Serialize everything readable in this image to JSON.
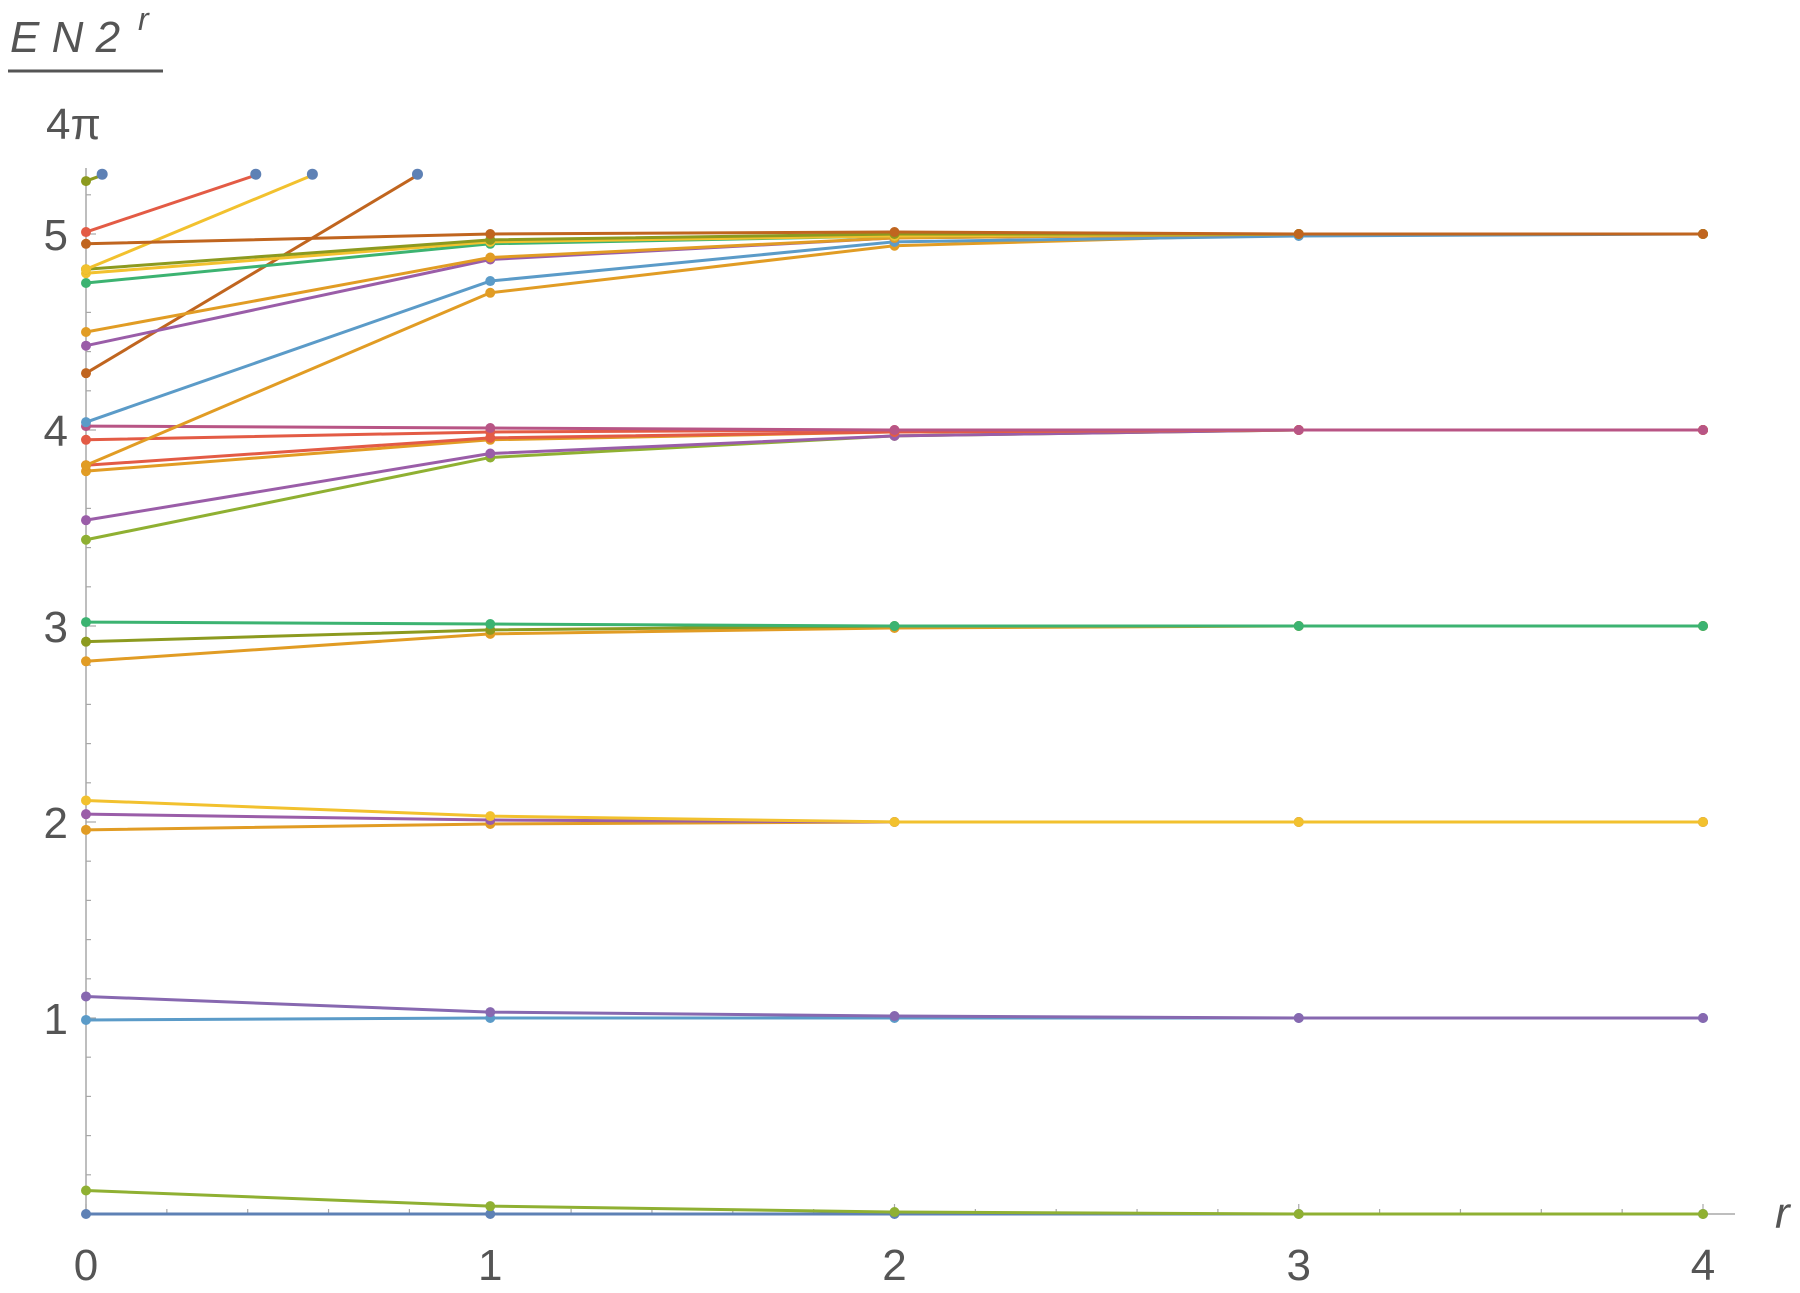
{
  "chart_data": {
    "type": "line",
    "x": [
      0,
      1,
      2,
      3,
      4
    ],
    "xlim": [
      0,
      4
    ],
    "ylim": [
      0,
      5.3
    ],
    "x_ticks": [
      "0",
      "1",
      "2",
      "3",
      "4"
    ],
    "y_ticks": [
      "1",
      "2",
      "3",
      "4",
      "5"
    ],
    "xlabel": "r",
    "ylabel": {
      "numerator_main": "E N 2",
      "numerator_sup": "r",
      "denominator": "4π"
    },
    "colors": {
      "blue": "#5E81B5",
      "steelblue": "#5B9BC8",
      "olive": "#8FB032",
      "orange": "#E19C24",
      "gold": "#F2C12E",
      "red": "#E35B45",
      "purple": "#9A5DA8",
      "green": "#3CB371",
      "brown": "#C0651F",
      "oliveDark": "#8C9A1F",
      "magenta": "#B85585",
      "lavender": "#8768B0"
    },
    "series": [
      {
        "color": "blue",
        "points": [
          [
            0,
            0
          ],
          [
            1,
            0
          ],
          [
            2,
            0
          ],
          [
            3,
            0
          ],
          [
            4,
            0
          ]
        ]
      },
      {
        "color": "olive",
        "points": [
          [
            0,
            0.12
          ],
          [
            1,
            0.04
          ],
          [
            2,
            0.01
          ],
          [
            3,
            0.0
          ],
          [
            4,
            0.0
          ]
        ]
      },
      {
        "color": "steelblue",
        "points": [
          [
            0,
            0.99
          ],
          [
            1,
            1.0
          ],
          [
            2,
            1.0
          ],
          [
            3,
            1.0
          ],
          [
            4,
            1.0
          ]
        ]
      },
      {
        "color": "lavender",
        "points": [
          [
            0,
            1.11
          ],
          [
            1,
            1.03
          ],
          [
            2,
            1.01
          ],
          [
            3,
            1.0
          ],
          [
            4,
            1.0
          ]
        ]
      },
      {
        "color": "orange",
        "points": [
          [
            0,
            1.96
          ],
          [
            1,
            1.99
          ],
          [
            2,
            2.0
          ],
          [
            3,
            2.0
          ],
          [
            4,
            2.0
          ]
        ]
      },
      {
        "color": "purple",
        "points": [
          [
            0,
            2.04
          ],
          [
            1,
            2.01
          ],
          [
            2,
            2.0
          ],
          [
            3,
            2.0
          ],
          [
            4,
            2.0
          ]
        ]
      },
      {
        "color": "gold",
        "points": [
          [
            0,
            2.11
          ],
          [
            1,
            2.03
          ],
          [
            2,
            2.0
          ],
          [
            3,
            2.0
          ],
          [
            4,
            2.0
          ]
        ]
      },
      {
        "color": "orange",
        "points": [
          [
            0,
            2.82
          ],
          [
            1,
            2.96
          ],
          [
            2,
            2.99
          ],
          [
            3,
            3.0
          ],
          [
            4,
            3.0
          ]
        ]
      },
      {
        "color": "oliveDark",
        "points": [
          [
            0,
            2.92
          ],
          [
            1,
            2.98
          ],
          [
            2,
            3.0
          ],
          [
            3,
            3.0
          ],
          [
            4,
            3.0
          ]
        ]
      },
      {
        "color": "green",
        "points": [
          [
            0,
            3.02
          ],
          [
            1,
            3.01
          ],
          [
            2,
            3.0
          ],
          [
            3,
            3.0
          ],
          [
            4,
            3.0
          ]
        ]
      },
      {
        "color": "olive",
        "points": [
          [
            0,
            3.44
          ],
          [
            1,
            3.86
          ],
          [
            2,
            3.97
          ],
          [
            3,
            4.0
          ],
          [
            4,
            4.0
          ]
        ]
      },
      {
        "color": "purple",
        "points": [
          [
            0,
            3.54
          ],
          [
            1,
            3.88
          ],
          [
            2,
            3.97
          ],
          [
            3,
            4.0
          ],
          [
            4,
            4.0
          ]
        ]
      },
      {
        "color": "orange",
        "points": [
          [
            0,
            3.79
          ],
          [
            1,
            3.95
          ],
          [
            2,
            3.99
          ],
          [
            3,
            4.0
          ],
          [
            4,
            4.0
          ]
        ]
      },
      {
        "color": "red",
        "points": [
          [
            0,
            3.82
          ],
          [
            1,
            3.96
          ],
          [
            2,
            3.99
          ],
          [
            3,
            4.0
          ],
          [
            4,
            4.0
          ]
        ]
      },
      {
        "color": "red",
        "points": [
          [
            0,
            3.95
          ],
          [
            1,
            3.99
          ],
          [
            2,
            4.0
          ],
          [
            3,
            4.0
          ],
          [
            4,
            4.0
          ]
        ]
      },
      {
        "color": "magenta",
        "points": [
          [
            0,
            4.02
          ],
          [
            1,
            4.01
          ],
          [
            2,
            4.0
          ],
          [
            3,
            4.0
          ],
          [
            4,
            4.0
          ]
        ]
      },
      {
        "color": "orange",
        "points": [
          [
            0,
            3.82
          ],
          [
            1,
            4.7
          ],
          [
            2,
            4.94
          ],
          [
            3,
            5.0
          ],
          [
            4,
            5.0
          ]
        ]
      },
      {
        "color": "steelblue",
        "points": [
          [
            0,
            4.04
          ],
          [
            1,
            4.76
          ],
          [
            2,
            4.96
          ],
          [
            3,
            4.99
          ],
          [
            4,
            5.0
          ]
        ]
      },
      {
        "color": "brown",
        "points": [
          [
            0,
            4.29
          ],
          [
            0.82,
            5.3
          ]
        ]
      },
      {
        "color": "purple",
        "points": [
          [
            0,
            4.43
          ],
          [
            1,
            4.87
          ],
          [
            2,
            4.98
          ],
          [
            3,
            5.0
          ],
          [
            4,
            5.0
          ]
        ]
      },
      {
        "color": "orange",
        "points": [
          [
            0,
            4.5
          ],
          [
            1,
            4.88
          ],
          [
            2,
            4.98
          ],
          [
            3,
            5.0
          ],
          [
            4,
            5.0
          ]
        ]
      },
      {
        "color": "green",
        "points": [
          [
            0,
            4.75
          ],
          [
            1,
            4.95
          ],
          [
            2,
            4.99
          ],
          [
            3,
            5.0
          ],
          [
            4,
            5.0
          ]
        ]
      },
      {
        "color": "gold",
        "points": [
          [
            0,
            4.8
          ],
          [
            1,
            4.96
          ],
          [
            2,
            4.99
          ],
          [
            3,
            5.0
          ],
          [
            4,
            5.0
          ]
        ]
      },
      {
        "color": "oliveDark",
        "points": [
          [
            0,
            4.82
          ],
          [
            1,
            4.97
          ],
          [
            2,
            5.0
          ],
          [
            3,
            5.0
          ],
          [
            4,
            5.0
          ]
        ]
      },
      {
        "color": "gold",
        "points": [
          [
            0,
            4.82
          ],
          [
            0.56,
            5.3
          ]
        ]
      },
      {
        "color": "brown",
        "points": [
          [
            0,
            4.95
          ],
          [
            1,
            5.0
          ],
          [
            2,
            5.01
          ],
          [
            3,
            5.0
          ],
          [
            4,
            5.0
          ]
        ]
      },
      {
        "color": "red",
        "points": [
          [
            0,
            5.01
          ],
          [
            0.42,
            5.3
          ]
        ]
      },
      {
        "color": "oliveDark",
        "points": [
          [
            0,
            5.27
          ],
          [
            0.04,
            5.3
          ]
        ]
      }
    ],
    "marker_color": "blue",
    "clip_markers": [
      [
        0.04,
        5.3
      ],
      [
        0.42,
        5.3
      ],
      [
        0.56,
        5.3
      ],
      [
        0.82,
        5.3
      ]
    ]
  }
}
